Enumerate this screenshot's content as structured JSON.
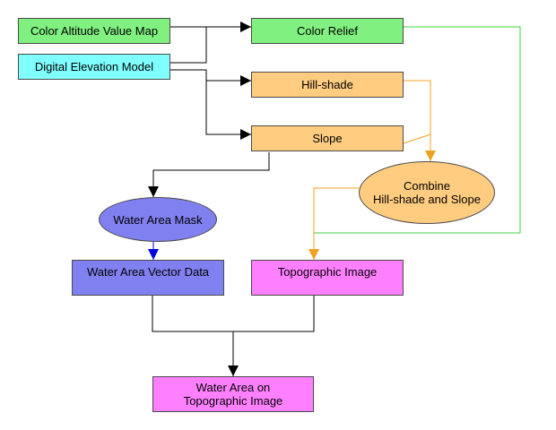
{
  "colors": {
    "green_box": "#80f080",
    "cyan_box": "#80ffff",
    "orange_box": "#ffcc80",
    "purple_box": "#8080f0",
    "magenta_box": "#ff80ff",
    "black_line": "#000000",
    "green_line": "#40d040",
    "orange_line": "#f0a020",
    "blue_line": "#0000e0"
  },
  "nodes": {
    "color_altitude": "Color Altitude Value Map",
    "dem": "Digital Elevation Model",
    "color_relief": "Color Relief",
    "hillshade": "Hill-shade",
    "slope": "Slope",
    "combine": "Combine\nHill-shade and Slope",
    "water_mask": "Water Area Mask",
    "water_vector": "Water Area Vector Data",
    "topo": "Topographic Image",
    "water_topo": "Water Area on\nTopographic Image"
  }
}
